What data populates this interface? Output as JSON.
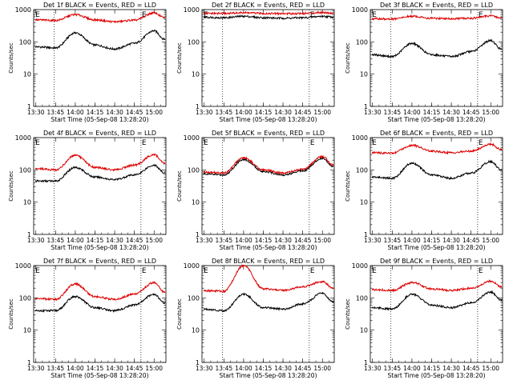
{
  "figure": {
    "xlabel": "Start Time (05-Sep-08 13:28:20)",
    "ylabel": "Counts/sec",
    "x_ticks": [
      "13:30",
      "13:45",
      "14:00",
      "14:15",
      "14:30",
      "14:45",
      "15:00"
    ],
    "y_ticks": [
      "1",
      "10",
      "100",
      "1000"
    ],
    "event_markers": [
      {
        "label": "E",
        "time": "13:29:00"
      },
      {
        "label": "E",
        "time": "14:50:00"
      }
    ],
    "dotted_time_lines": [
      "13:44:00",
      "14:50:00"
    ],
    "colors": {
      "events": "#000000",
      "lld": "#dd0000"
    }
  },
  "chart_data": [
    {
      "type": "line",
      "title": "Det 1f BLACK = Events, RED = LLD",
      "xlabel": "Start Time (05-Sep-08 13:28:20)",
      "ylabel": "Counts/sec",
      "y_scale": "log",
      "ylim": [
        1,
        1000
      ],
      "xlim": [
        "13:30",
        "15:08"
      ],
      "x": [
        "13:30",
        "13:45",
        "14:00",
        "14:15",
        "14:30",
        "14:45",
        "15:00",
        "15:08"
      ],
      "series": [
        {
          "name": "Events",
          "color": "#000000",
          "values": [
            70,
            65,
            190,
            80,
            60,
            90,
            220,
            120
          ]
        },
        {
          "name": "LLD",
          "color": "#dd0000",
          "values": [
            480,
            460,
            700,
            480,
            420,
            470,
            790,
            560
          ]
        }
      ]
    },
    {
      "type": "line",
      "title": "Det 2f BLACK = Events, RED = LLD",
      "xlabel": "Start Time (05-Sep-08 13:28:20)",
      "ylabel": "Counts/sec",
      "y_scale": "log",
      "ylim": [
        1,
        1000
      ],
      "xlim": [
        "13:30",
        "15:08"
      ],
      "x": [
        "13:30",
        "13:45",
        "14:00",
        "14:15",
        "14:30",
        "14:45",
        "15:00",
        "15:08"
      ],
      "series": [
        {
          "name": "Events",
          "color": "#000000",
          "values": [
            580,
            560,
            620,
            560,
            540,
            560,
            620,
            590
          ]
        },
        {
          "name": "LLD",
          "color": "#dd0000",
          "values": [
            760,
            760,
            800,
            760,
            750,
            760,
            820,
            780
          ]
        }
      ]
    },
    {
      "type": "line",
      "title": "Det 3f BLACK = Events, RED = LLD",
      "xlabel": "Start Time (05-Sep-08 13:28:20)",
      "ylabel": "Counts/sec",
      "y_scale": "log",
      "ylim": [
        1,
        1000
      ],
      "xlim": [
        "13:30",
        "15:08"
      ],
      "x": [
        "13:30",
        "13:45",
        "14:00",
        "14:15",
        "14:30",
        "14:45",
        "15:00",
        "15:08"
      ],
      "series": [
        {
          "name": "Events",
          "color": "#000000",
          "values": [
            40,
            35,
            90,
            40,
            35,
            50,
            110,
            60
          ]
        },
        {
          "name": "LLD",
          "color": "#dd0000",
          "values": [
            520,
            510,
            620,
            540,
            520,
            540,
            640,
            560
          ]
        }
      ]
    },
    {
      "type": "line",
      "title": "Det 4f BLACK = Events, RED = LLD",
      "xlabel": "Start Time (05-Sep-08 13:28:20)",
      "ylabel": "Counts/sec",
      "y_scale": "log",
      "ylim": [
        1,
        1000
      ],
      "xlim": [
        "13:30",
        "15:08"
      ],
      "x": [
        "13:30",
        "13:45",
        "14:00",
        "14:15",
        "14:30",
        "14:45",
        "15:00",
        "15:08"
      ],
      "series": [
        {
          "name": "Events",
          "color": "#000000",
          "values": [
            45,
            45,
            120,
            60,
            50,
            70,
            140,
            80
          ]
        },
        {
          "name": "LLD",
          "color": "#dd0000",
          "values": [
            110,
            100,
            280,
            120,
            100,
            140,
            300,
            160
          ]
        }
      ]
    },
    {
      "type": "line",
      "title": "Det 5f BLACK = Events, RED = LLD",
      "xlabel": "Start Time (05-Sep-08 13:28:20)",
      "ylabel": "Counts/sec",
      "y_scale": "log",
      "ylim": [
        1,
        1000
      ],
      "xlim": [
        "13:30",
        "15:08"
      ],
      "x": [
        "13:30",
        "13:45",
        "14:00",
        "14:15",
        "14:30",
        "14:45",
        "15:00",
        "15:08"
      ],
      "series": [
        {
          "name": "Events",
          "color": "#000000",
          "values": [
            75,
            70,
            210,
            90,
            70,
            95,
            230,
            130
          ]
        },
        {
          "name": "LLD",
          "color": "#dd0000",
          "values": [
            85,
            80,
            240,
            100,
            80,
            105,
            260,
            145
          ]
        }
      ]
    },
    {
      "type": "line",
      "title": "Det 6f BLACK = Events, RED = LLD",
      "xlabel": "Start Time (05-Sep-08 13:28:20)",
      "ylabel": "Counts/sec",
      "y_scale": "log",
      "ylim": [
        1,
        1000
      ],
      "xlim": [
        "13:30",
        "15:08"
      ],
      "x": [
        "13:30",
        "13:45",
        "14:00",
        "14:15",
        "14:30",
        "14:45",
        "15:00",
        "15:08"
      ],
      "series": [
        {
          "name": "Events",
          "color": "#000000",
          "values": [
            60,
            55,
            160,
            70,
            55,
            80,
            180,
            100
          ]
        },
        {
          "name": "LLD",
          "color": "#dd0000",
          "values": [
            340,
            330,
            580,
            380,
            340,
            380,
            620,
            430
          ]
        }
      ]
    },
    {
      "type": "line",
      "title": "Det 7f BLACK = Events, RED = LLD",
      "xlabel": "Start Time (05-Sep-08 13:28:20)",
      "ylabel": "Counts/sec",
      "y_scale": "log",
      "ylim": [
        1,
        1000
      ],
      "xlim": [
        "13:30",
        "15:08"
      ],
      "x": [
        "13:30",
        "13:45",
        "14:00",
        "14:15",
        "14:30",
        "14:45",
        "15:00",
        "15:08"
      ],
      "series": [
        {
          "name": "Events",
          "color": "#000000",
          "values": [
            40,
            40,
            110,
            50,
            40,
            60,
            130,
            70
          ]
        },
        {
          "name": "LLD",
          "color": "#dd0000",
          "values": [
            95,
            90,
            270,
            110,
            90,
            130,
            300,
            150
          ]
        }
      ]
    },
    {
      "type": "line",
      "title": "Det 8f BLACK = Events, RED = LLD",
      "xlabel": "Start Time (05-Sep-08 13:28:20)",
      "ylabel": "Counts/sec",
      "y_scale": "log",
      "ylim": [
        1,
        1000
      ],
      "xlim": [
        "13:30",
        "15:08"
      ],
      "x": [
        "13:30",
        "13:45",
        "14:00",
        "14:15",
        "14:30",
        "14:45",
        "15:00",
        "15:08"
      ],
      "series": [
        {
          "name": "Events",
          "color": "#000000",
          "values": [
            45,
            40,
            130,
            50,
            45,
            65,
            140,
            75
          ]
        },
        {
          "name": "LLD",
          "color": "#dd0000",
          "values": [
            170,
            160,
            1000,
            190,
            170,
            220,
            320,
            200
          ]
        }
      ]
    },
    {
      "type": "line",
      "title": "Det 9f BLACK = Events, RED = LLD",
      "xlabel": "Start Time (05-Sep-08 13:28:20)",
      "ylabel": "Counts/sec",
      "y_scale": "log",
      "ylim": [
        1,
        1000
      ],
      "xlim": [
        "13:30",
        "15:08"
      ],
      "x": [
        "13:30",
        "13:45",
        "14:00",
        "14:15",
        "14:30",
        "14:45",
        "15:00",
        "15:08"
      ],
      "series": [
        {
          "name": "Events",
          "color": "#000000",
          "values": [
            50,
            45,
            130,
            60,
            50,
            70,
            150,
            85
          ]
        },
        {
          "name": "LLD",
          "color": "#dd0000",
          "values": [
            180,
            170,
            300,
            190,
            170,
            200,
            330,
            220
          ]
        }
      ]
    }
  ]
}
